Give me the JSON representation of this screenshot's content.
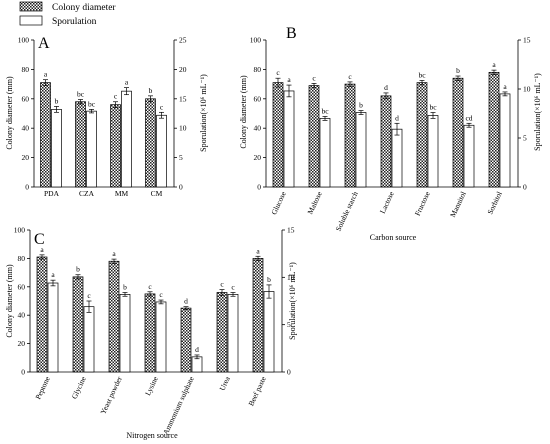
{
  "legend": [
    {
      "label": "Colony diameter",
      "fill": "hatched"
    },
    {
      "label": "Sporulation",
      "fill": "#ffffff"
    }
  ],
  "colors": {
    "axis": "#000000",
    "sporulation_fill": "#ffffff",
    "hatch": "#222222"
  },
  "chart_data": [
    {
      "panel": "A",
      "type": "bar",
      "categories": [
        "PDA",
        "CZA",
        "MM",
        "CM"
      ],
      "xlabel": "",
      "ylabel_left": "Colony diameter (mm)",
      "ylabel_right": "Sporulation(×10⁶ mL⁻¹)",
      "ylim_left": [
        0,
        100
      ],
      "ylim_right": [
        0,
        25
      ],
      "yticks_left": [
        0,
        20,
        40,
        60,
        80,
        100
      ],
      "yticks_right": [
        0,
        5,
        10,
        15,
        20,
        25
      ],
      "series": [
        {
          "name": "Colony diameter",
          "axis": "left",
          "values": [
            71,
            58,
            56,
            60
          ],
          "errors": [
            2,
            1.5,
            2,
            2
          ],
          "labels": [
            "a",
            "bc",
            "c",
            "b"
          ]
        },
        {
          "name": "Sporulation",
          "axis": "right",
          "values": [
            13.2,
            12.9,
            16.3,
            12.2
          ],
          "errors": [
            0.5,
            0.3,
            0.6,
            0.5
          ],
          "labels": [
            "b",
            "bc",
            "a",
            "c"
          ]
        }
      ]
    },
    {
      "panel": "B",
      "type": "bar",
      "categories": [
        "Glucose",
        "Maltose",
        "Soluble starch",
        "Lactose",
        "Fructose",
        "Mannitol",
        "Sorbitol"
      ],
      "xlabel": "Carbon source",
      "ylabel_left": "Colony diameter (mm)",
      "ylabel_right": "Sporulation(×10⁶ mL⁻¹)",
      "ylim_left": [
        0,
        100
      ],
      "ylim_right": [
        0,
        15
      ],
      "yticks_left": [
        0,
        20,
        40,
        60,
        80,
        100
      ],
      "yticks_right": [
        0,
        5,
        10,
        15
      ],
      "series": [
        {
          "name": "Colony diameter",
          "axis": "left",
          "values": [
            71,
            69,
            70,
            62,
            71,
            74,
            78
          ],
          "errors": [
            3,
            1.5,
            1.5,
            2,
            1.5,
            1.5,
            1.5
          ],
          "labels": [
            "c",
            "c",
            "c",
            "d",
            "bc",
            "b",
            "a"
          ]
        },
        {
          "name": "Sporulation",
          "axis": "right",
          "values": [
            9.8,
            7.0,
            7.6,
            5.9,
            7.3,
            6.3,
            9.5
          ],
          "errors": [
            0.6,
            0.2,
            0.2,
            0.6,
            0.3,
            0.2,
            0.2
          ],
          "labels": [
            "a",
            "bc",
            "b",
            "d",
            "bc",
            "cd",
            "a"
          ]
        }
      ]
    },
    {
      "panel": "C",
      "type": "bar",
      "categories": [
        "Peptone",
        "Glycine",
        "Yeast powder",
        "Lysine",
        "Ammonium sulphate",
        "Urea",
        "Beef paste"
      ],
      "xlabel": "Nitrogen source",
      "ylabel_left": "Colony diameter (mm)",
      "ylabel_right": "Sporulation(×10⁶ mL⁻¹)",
      "ylim_left": [
        0,
        100
      ],
      "ylim_right": [
        0,
        15
      ],
      "yticks_left": [
        0,
        20,
        40,
        60,
        80,
        100
      ],
      "yticks_right": [
        0,
        5,
        10,
        15
      ],
      "series": [
        {
          "name": "Colony diameter",
          "axis": "left",
          "values": [
            81,
            67,
            78,
            55,
            45,
            56,
            80
          ],
          "errors": [
            1.5,
            1.5,
            1.5,
            1.5,
            1,
            2,
            1.5
          ],
          "labels": [
            "a",
            "b",
            "a",
            "c",
            "d",
            "c",
            "a"
          ]
        },
        {
          "name": "Sporulation",
          "axis": "right",
          "values": [
            9.4,
            6.9,
            8.2,
            7.4,
            1.6,
            8.2,
            8.5
          ],
          "errors": [
            0.3,
            0.6,
            0.2,
            0.2,
            0.2,
            0.2,
            0.7
          ],
          "labels": [
            "a",
            "c",
            "b",
            "c",
            "d",
            "c",
            "b"
          ]
        }
      ]
    }
  ]
}
